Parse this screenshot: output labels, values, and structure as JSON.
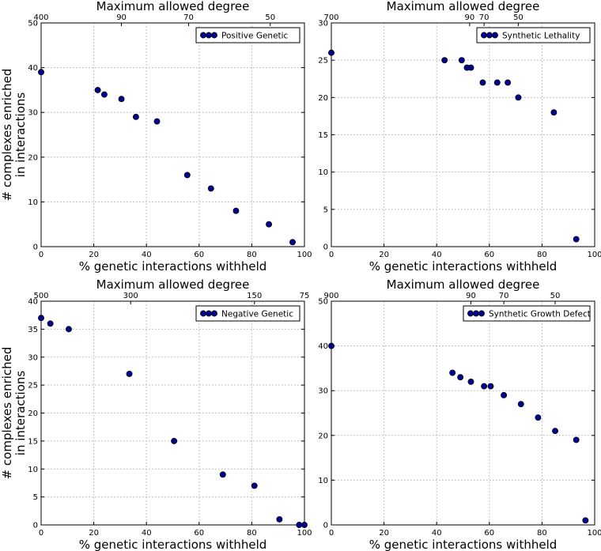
{
  "figure": {
    "ylabel_left": "# complexes enriched\nin interactions"
  },
  "chart_data": [
    {
      "type": "scatter",
      "title": "Maximum allowed degree",
      "xlabel": "% genetic interactions withheld",
      "legend": "Positive Genetic",
      "legend_position": "top-right",
      "grid": true,
      "xlim": [
        0,
        100
      ],
      "ylim": [
        0,
        50
      ],
      "xticks": [
        0,
        20,
        40,
        60,
        80,
        100
      ],
      "yticks": [
        0,
        10,
        20,
        30,
        40,
        50
      ],
      "top_ticks": [
        {
          "x": 0,
          "label": "400"
        },
        {
          "x": 30.5,
          "label": "90"
        },
        {
          "x": 56,
          "label": "70"
        },
        {
          "x": 87,
          "label": "50"
        }
      ],
      "color": "#00008b",
      "x": [
        0,
        21.5,
        24,
        30.5,
        36,
        44,
        55.5,
        64.5,
        74,
        86.5,
        95.5
      ],
      "y": [
        39,
        35,
        34,
        33,
        29,
        28,
        16,
        13,
        8,
        5,
        1
      ]
    },
    {
      "type": "scatter",
      "title": "Maximum allowed degree",
      "xlabel": "% genetic interactions withheld",
      "legend": "Synthetic Lethality",
      "legend_position": "top-right",
      "grid": true,
      "xlim": [
        0,
        100
      ],
      "ylim": [
        0,
        30
      ],
      "xticks": [
        0,
        20,
        40,
        60,
        80,
        100
      ],
      "yticks": [
        0,
        5,
        10,
        15,
        20,
        25,
        30
      ],
      "top_ticks": [
        {
          "x": 0,
          "label": "700"
        },
        {
          "x": 52.5,
          "label": "90"
        },
        {
          "x": 58,
          "label": "70"
        },
        {
          "x": 71,
          "label": "50"
        }
      ],
      "color": "#00008b",
      "x": [
        0,
        43,
        49.5,
        51.5,
        53,
        57.5,
        63,
        67,
        71,
        84.5,
        93
      ],
      "y": [
        26,
        25,
        25,
        24,
        24,
        22,
        22,
        22,
        20,
        18,
        1
      ]
    },
    {
      "type": "scatter",
      "title": "Maximum allowed degree",
      "xlabel": "% genetic interactions withheld",
      "legend": "Negative Genetic",
      "legend_position": "top-right",
      "grid": true,
      "xlim": [
        0,
        100
      ],
      "ylim": [
        0,
        40
      ],
      "xticks": [
        0,
        20,
        40,
        60,
        80,
        100
      ],
      "yticks": [
        0,
        5,
        10,
        15,
        20,
        25,
        30,
        35,
        40
      ],
      "top_ticks": [
        {
          "x": 0,
          "label": "500"
        },
        {
          "x": 34,
          "label": "300"
        },
        {
          "x": 81,
          "label": "150"
        },
        {
          "x": 100,
          "label": "75"
        }
      ],
      "color": "#00008b",
      "x": [
        0,
        3.5,
        10.5,
        33.5,
        50.5,
        69,
        81,
        90.5,
        98,
        100
      ],
      "y": [
        37,
        36,
        35,
        27,
        15,
        9,
        7,
        1,
        0,
        0
      ]
    },
    {
      "type": "scatter",
      "title": "Maximum allowed degree",
      "xlabel": "% genetic interactions withheld",
      "legend": "Synthetic Growth Defect",
      "legend_position": "top-right",
      "grid": true,
      "xlim": [
        0,
        100
      ],
      "ylim": [
        0,
        50
      ],
      "xticks": [
        0,
        20,
        40,
        60,
        80,
        100
      ],
      "yticks": [
        0,
        10,
        20,
        30,
        40,
        50
      ],
      "top_ticks": [
        {
          "x": 0,
          "label": "900"
        },
        {
          "x": 53,
          "label": "90"
        },
        {
          "x": 65.5,
          "label": "70"
        },
        {
          "x": 85,
          "label": "50"
        }
      ],
      "color": "#00008b",
      "x": [
        0,
        46,
        49,
        53,
        58,
        60.5,
        65.5,
        72,
        78.5,
        85,
        93,
        96.5
      ],
      "y": [
        40,
        34,
        33,
        32,
        31,
        31,
        29,
        27,
        24,
        21,
        19,
        1
      ]
    }
  ]
}
